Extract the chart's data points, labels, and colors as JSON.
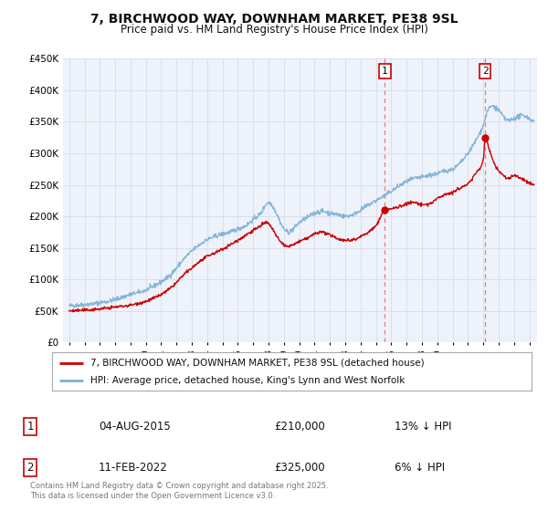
{
  "title": "7, BIRCHWOOD WAY, DOWNHAM MARKET, PE38 9SL",
  "subtitle": "Price paid vs. HM Land Registry's House Price Index (HPI)",
  "legend_label_red": "7, BIRCHWOOD WAY, DOWNHAM MARKET, PE38 9SL (detached house)",
  "legend_label_blue": "HPI: Average price, detached house, King's Lynn and West Norfolk",
  "sale1_date": "04-AUG-2015",
  "sale1_price": 210000,
  "sale1_hpi": "13% ↓ HPI",
  "sale1_x": 2015.58,
  "sale2_date": "11-FEB-2022",
  "sale2_price": 325000,
  "sale2_hpi": "6% ↓ HPI",
  "sale2_x": 2022.12,
  "footer": "Contains HM Land Registry data © Crown copyright and database right 2025.\nThis data is licensed under the Open Government Licence v3.0.",
  "ylim": [
    0,
    450000
  ],
  "xlim": [
    1994.6,
    2025.5
  ],
  "yticks": [
    0,
    50000,
    100000,
    150000,
    200000,
    250000,
    300000,
    350000,
    400000,
    450000
  ],
  "ytick_labels": [
    "£0",
    "£50K",
    "£100K",
    "£150K",
    "£200K",
    "£250K",
    "£300K",
    "£350K",
    "£400K",
    "£450K"
  ],
  "red_color": "#cc0000",
  "blue_color": "#7ab0d4",
  "vline_color": "#e08080",
  "bg_plot": "#eef2fa",
  "grid_color": "#d8dce8"
}
